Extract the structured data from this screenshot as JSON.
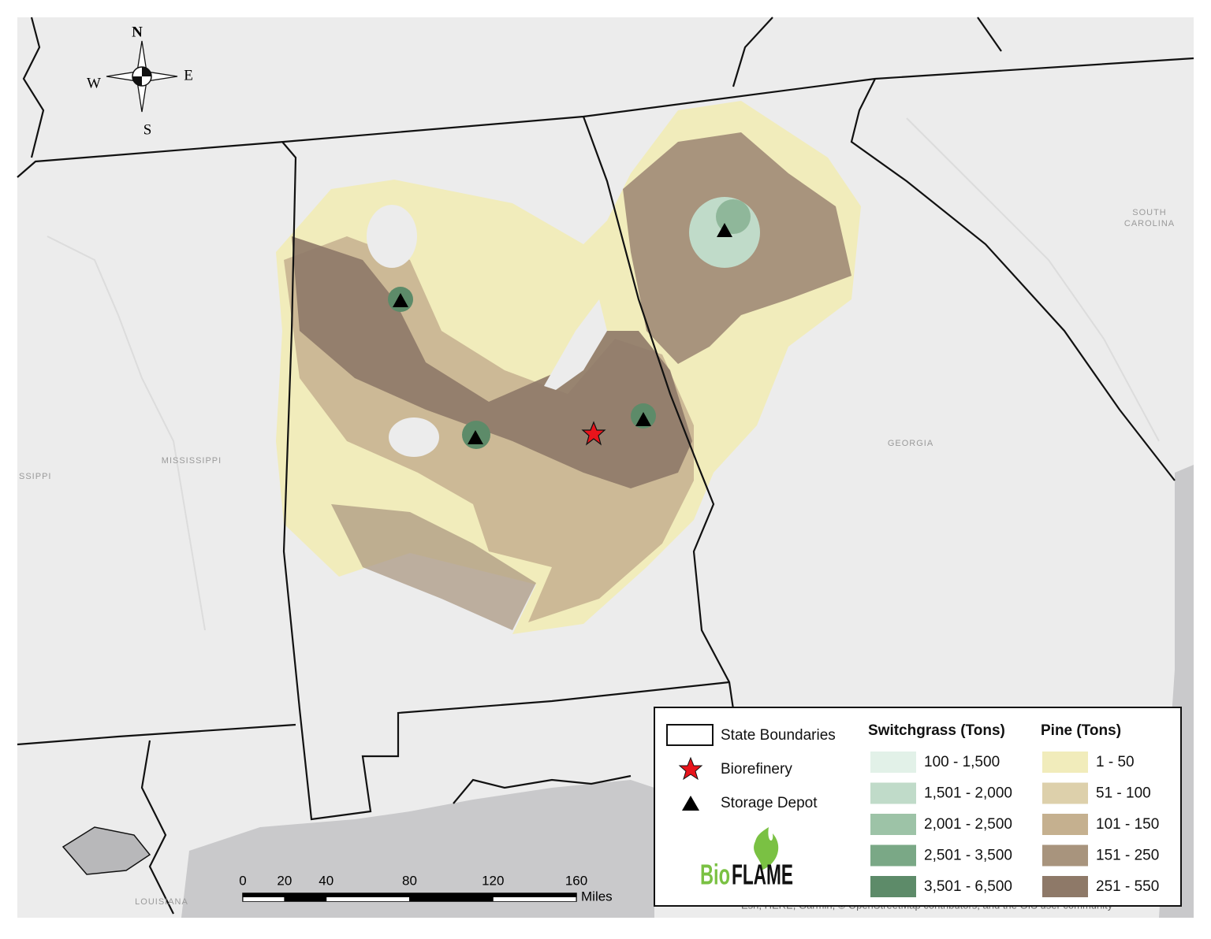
{
  "compass": {
    "north": "N",
    "east": "E",
    "south": "S",
    "west": "W"
  },
  "place_labels": {
    "mississippi": "MISSISSIPPI",
    "mississippi_edge": "SSIPPI",
    "georgia": "GEORGIA",
    "south_carolina_1": "SOUTH",
    "south_carolina_2": "CAROLINA",
    "louisiana": "LOUISIANA"
  },
  "legend": {
    "symbols": [
      "State Boundaries",
      "Biorefinery",
      "Storage Depot"
    ],
    "switchgrass": {
      "title": "Switchgrass (Tons)",
      "classes": [
        {
          "label": "100 - 1,500",
          "color": "#e2f1e8"
        },
        {
          "label": "1,501 - 2,000",
          "color": "#c0dbc9"
        },
        {
          "label": "2,001 - 2,500",
          "color": "#9dc3a7"
        },
        {
          "label": "2,501 - 3,500",
          "color": "#7aa886"
        },
        {
          "label": "3,501 - 6,500",
          "color": "#5d8b69"
        }
      ]
    },
    "pine": {
      "title": "Pine (Tons)",
      "classes": [
        {
          "label": "1 - 50",
          "color": "#f1ecbb"
        },
        {
          "label": "51 - 100",
          "color": "#ddd0ab"
        },
        {
          "label": "101 - 150",
          "color": "#c5b08f"
        },
        {
          "label": "151 - 250",
          "color": "#a8947d"
        },
        {
          "label": "251 - 550",
          "color": "#8e7968"
        }
      ]
    },
    "logo": {
      "bio": "Bio",
      "flame": "FLAME"
    }
  },
  "scale_bar": {
    "ticks": [
      0,
      20,
      40,
      80,
      120,
      160
    ],
    "unit": "Miles"
  },
  "attribution": "Esri, HERE, Garmin, © OpenStreetMap contributors, and the GIS user community"
}
